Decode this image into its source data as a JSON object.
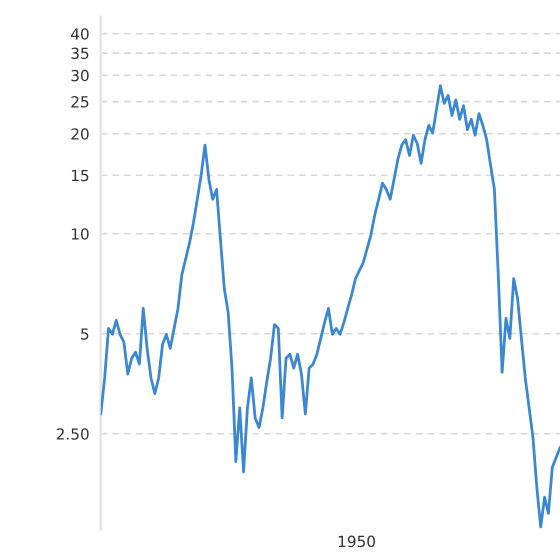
{
  "chart_data": {
    "type": "line",
    "log": "y",
    "grid": "y",
    "line_style": "solid",
    "annotations": [
      "1950"
    ],
    "categories": [
      null,
      null,
      null,
      null,
      null,
      null,
      null,
      null,
      null,
      null,
      null,
      null,
      null,
      null,
      null,
      null,
      null,
      null,
      null,
      null,
      null,
      null,
      null,
      null,
      null,
      null,
      null,
      null,
      null,
      null,
      null,
      null,
      null,
      null,
      null,
      null,
      null,
      null,
      null,
      null,
      null,
      null,
      null,
      null,
      null,
      null,
      null,
      null,
      null,
      null,
      null,
      null,
      null,
      null,
      null,
      null,
      null,
      null,
      null,
      null,
      null,
      null,
      null,
      null,
      null,
      null,
      null,
      null,
      null,
      null,
      null,
      null,
      null,
      null,
      null,
      null,
      null,
      null,
      null,
      null,
      null,
      null,
      null,
      null,
      null,
      null,
      null,
      null,
      null,
      null,
      null,
      null,
      null,
      null,
      null,
      null,
      null,
      null,
      null,
      null,
      null,
      null,
      null,
      null,
      null,
      null,
      null,
      null,
      null,
      null,
      null,
      null,
      null,
      null,
      null,
      null,
      null,
      null,
      null,
      null
    ],
    "ylim": [
      1.29,
      45
    ],
    "yticks": [
      {
        "value": 2.5,
        "label": "2.50"
      },
      {
        "value": 5,
        "label": "5"
      },
      {
        "value": 10,
        "label": "10"
      },
      {
        "value": 15,
        "label": "15"
      },
      {
        "value": 20,
        "label": "20"
      },
      {
        "value": 25,
        "label": "25"
      },
      {
        "value": 30,
        "label": "30"
      },
      {
        "value": 35,
        "label": "35"
      },
      {
        "value": 40,
        "label": "40"
      }
    ],
    "series": [
      {
        "color": "#3b87d4",
        "values": [
          2.87,
          3.68,
          5.19,
          4.98,
          5.49,
          4.98,
          4.71,
          3.78,
          4.22,
          4.4,
          4.05,
          5.96,
          4.52,
          3.68,
          3.3,
          3.68,
          4.65,
          4.98,
          4.52,
          5.19,
          5.96,
          7.53,
          8.41,
          9.39,
          10.8,
          12.7,
          15.0,
          18.5,
          14.6,
          12.7,
          13.6,
          9.65,
          6.84,
          5.8,
          3.94,
          2.06,
          2.99,
          1.92,
          2.99,
          3.68,
          2.79,
          2.61,
          2.99,
          3.58,
          4.22,
          5.33,
          5.19,
          2.79,
          4.22,
          4.34,
          3.94,
          4.34,
          3.78,
          2.87,
          3.94,
          4.05,
          4.34,
          4.84,
          5.41,
          5.96,
          4.98,
          5.19,
          4.98,
          5.41,
          5.96,
          6.56,
          7.33,
          7.74,
          8.18,
          9.01,
          9.93,
          11.4,
          12.7,
          14.2,
          13.6,
          12.7,
          14.6,
          16.8,
          18.5,
          19.2,
          17.2,
          19.8,
          18.7,
          16.3,
          19.2,
          21.2,
          20.1,
          23.7,
          27.9,
          24.7,
          26.1,
          22.7,
          25.3,
          22.1,
          24.3,
          20.6,
          22.1,
          19.8,
          23.0,
          21.2,
          19.2,
          16.1,
          13.6,
          7.53,
          3.83,
          5.56,
          4.84,
          7.33,
          6.39,
          4.84,
          3.68,
          2.99,
          2.43,
          1.72,
          1.31,
          1.61,
          1.44,
          1.98,
          2.12,
          2.27
        ]
      }
    ]
  }
}
